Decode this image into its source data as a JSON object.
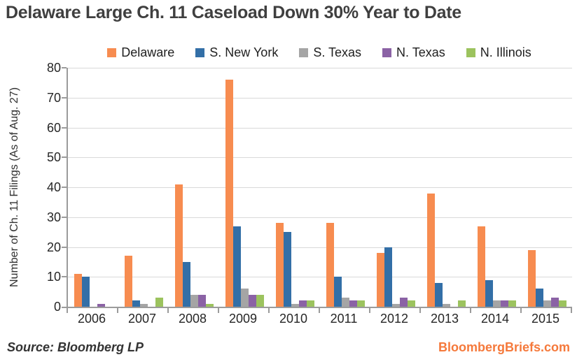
{
  "page": {
    "title": "Delaware Large Ch. 11 Caseload Down 30% Year to Date",
    "source_label": "Source: Bloomberg LP",
    "site_label": "BloombergBriefs.com"
  },
  "colors": {
    "title_text": "#3f3f3f",
    "axis": "#9b9b9b",
    "gridline": "#d9d9d9",
    "footer_link": "#f5793b",
    "delaware_orange": "#f78c50",
    "new_york_blue": "#336fa7",
    "texas_gray": "#a5a5a5",
    "n_texas_purple": "#8b62a5",
    "illinois_green": "#9cc35e"
  },
  "chart_data": {
    "type": "bar",
    "title": "Delaware Large Ch. 11 Caseload Down 30% Year to Date",
    "categories": [
      "2006",
      "2007",
      "2008",
      "2009",
      "2010",
      "2011",
      "2012",
      "2013",
      "2014",
      "2015"
    ],
    "series": [
      {
        "name": "Delaware",
        "color": "#f78c50",
        "values": [
          11,
          17,
          41,
          76,
          28,
          28,
          18,
          38,
          27,
          19
        ]
      },
      {
        "name": "S. New York",
        "color": "#336fa7",
        "values": [
          10,
          2,
          15,
          27,
          25,
          10,
          20,
          8,
          9,
          6
        ]
      },
      {
        "name": "S. Texas",
        "color": "#a5a5a5",
        "values": [
          0,
          1,
          4,
          6,
          1,
          3,
          1,
          1,
          2,
          2
        ]
      },
      {
        "name": "N. Texas",
        "color": "#8b62a5",
        "values": [
          1,
          0,
          4,
          4,
          2,
          2,
          3,
          0,
          2,
          3
        ]
      },
      {
        "name": "N. Illinois",
        "color": "#9cc35e",
        "values": [
          0,
          3,
          1,
          4,
          2,
          2,
          2,
          2,
          2,
          2
        ]
      }
    ],
    "xlabel": "",
    "ylabel": "Number of Ch. 11 Filings (As of Aug. 27)",
    "ylim": [
      0,
      80
    ],
    "ytick_step": 10,
    "grid": true,
    "legend_position": "top"
  }
}
